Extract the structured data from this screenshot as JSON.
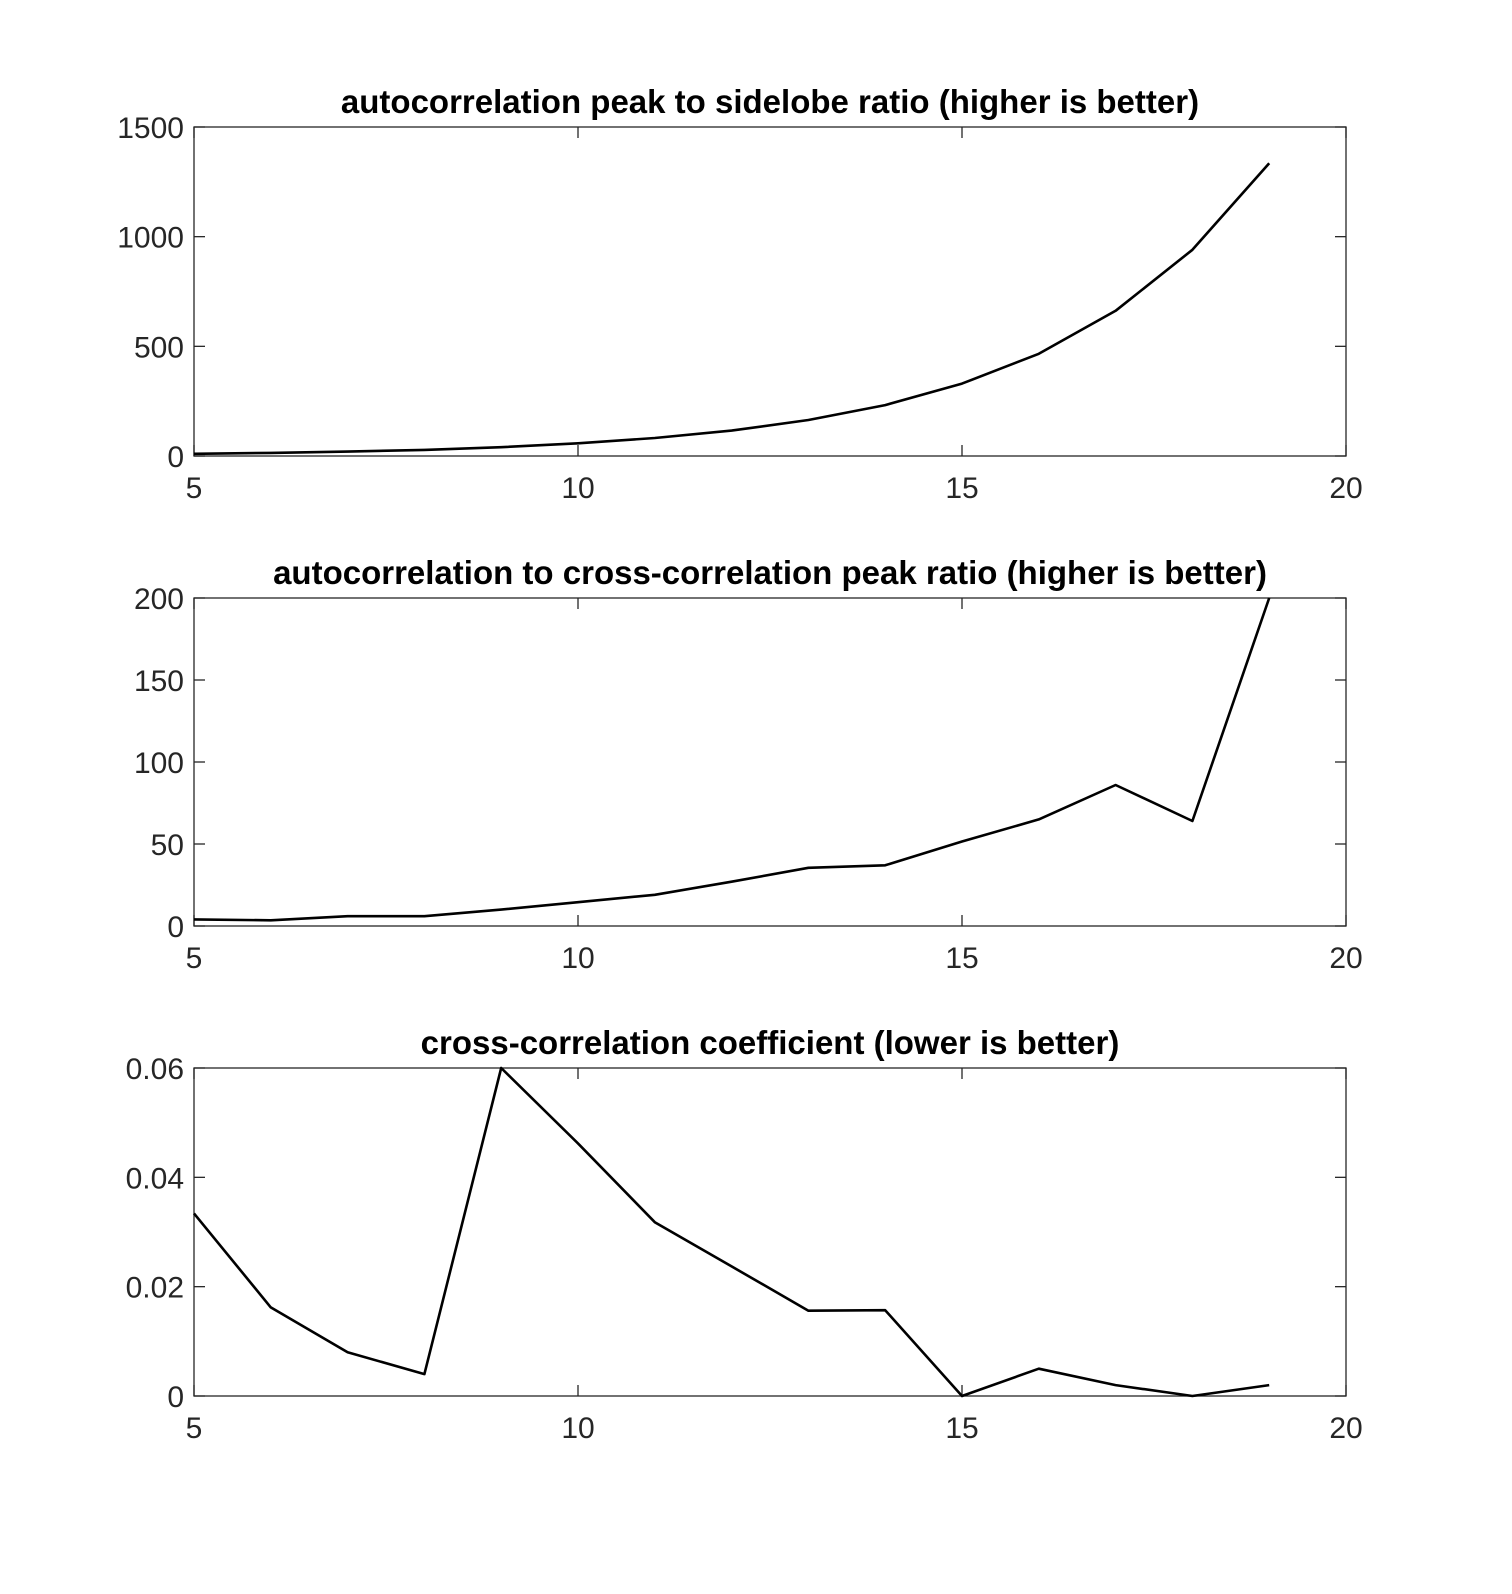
{
  "figure": {
    "background": "#ffffff",
    "line_color": "#000000"
  },
  "chart_data": [
    {
      "type": "line",
      "title": "autocorrelation peak to sidelobe ratio (higher is better)",
      "xlabel": "",
      "ylabel": "",
      "xlim": [
        5,
        20
      ],
      "ylim": [
        0,
        1500
      ],
      "xticks": [
        5,
        10,
        15,
        20
      ],
      "yticks": [
        0,
        500,
        1000,
        1500
      ],
      "ytick_labels": [
        "0",
        "500",
        "1000",
        "1500"
      ],
      "grid": false,
      "x": [
        5,
        6,
        7,
        8,
        9,
        10,
        11,
        12,
        13,
        14,
        15,
        16,
        17,
        18,
        19
      ],
      "series": [
        {
          "values": [
            10,
            14,
            20,
            28,
            40,
            58,
            82,
            116,
            164,
            232,
            330,
            466,
            662,
            940,
            1335
          ]
        }
      ]
    },
    {
      "type": "line",
      "title": "autocorrelation to cross-correlation peak ratio (higher is better)",
      "xlabel": "",
      "ylabel": "",
      "xlim": [
        5,
        20
      ],
      "ylim": [
        0,
        200
      ],
      "xticks": [
        5,
        10,
        15,
        20
      ],
      "yticks": [
        0,
        50,
        100,
        150,
        200
      ],
      "ytick_labels": [
        "0",
        "50",
        "100",
        "150",
        "200"
      ],
      "grid": false,
      "x": [
        5,
        6,
        7,
        8,
        9,
        10,
        11,
        12,
        13,
        14,
        15,
        16,
        17,
        18,
        19
      ],
      "series": [
        {
          "values": [
            4,
            3.5,
            6,
            6,
            10,
            14.5,
            19,
            27,
            35.5,
            37,
            51.5,
            65,
            86,
            64,
            200
          ]
        }
      ]
    },
    {
      "type": "line",
      "title": "cross-correlation coefficient (lower is better)",
      "xlabel": "",
      "ylabel": "",
      "xlim": [
        5,
        20
      ],
      "ylim": [
        0,
        0.06
      ],
      "xticks": [
        5,
        10,
        15,
        20
      ],
      "yticks": [
        0,
        0.02,
        0.04,
        0.06
      ],
      "ytick_labels": [
        "0",
        "0.02",
        "0.04",
        "0.06"
      ],
      "grid": false,
      "x": [
        5,
        6,
        7,
        8,
        9,
        10,
        11,
        12,
        13,
        14,
        15,
        16,
        17,
        18,
        19
      ],
      "series": [
        {
          "values": [
            0.0334,
            0.0162,
            0.008,
            0.004,
            0.0606,
            0.0462,
            0.0318,
            0.0237,
            0.0156,
            0.0157,
            0.0,
            0.005,
            0.002,
            0.0,
            0.002
          ]
        }
      ]
    }
  ]
}
